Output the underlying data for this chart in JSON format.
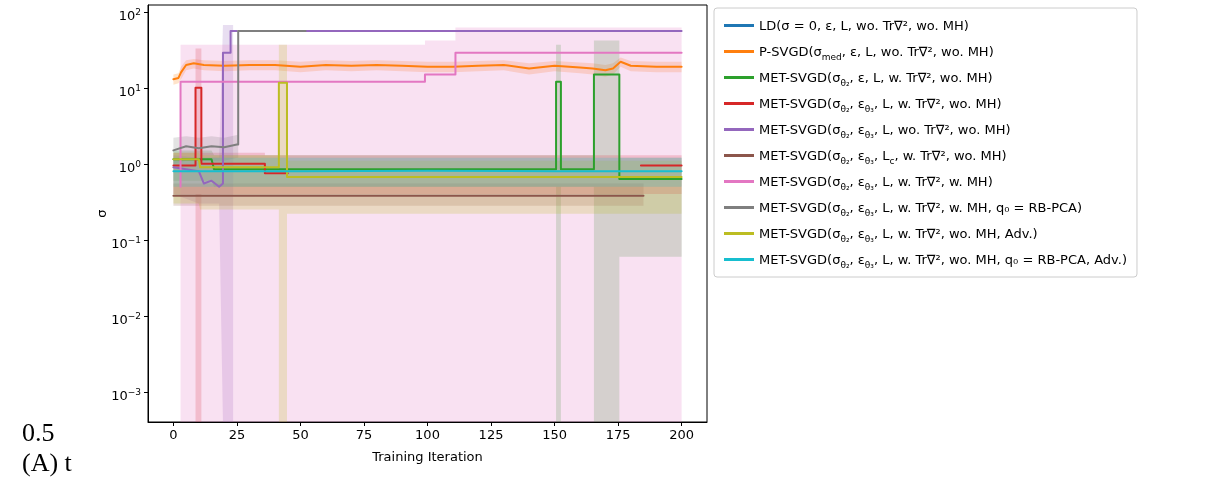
{
  "chart_data": {
    "type": "line",
    "xlabel": "Training Iteration",
    "ylabel": "σ",
    "xlim": [
      -10,
      210
    ],
    "xticks": [
      0,
      25,
      50,
      75,
      100,
      125,
      150,
      175,
      200
    ],
    "ylim": [
      0.0004,
      123
    ],
    "yticks": [
      {
        "value": 0.001,
        "label": "10$^{−3}$"
      },
      {
        "value": 0.01,
        "label": "10$^{−2}$"
      },
      {
        "value": 0.1,
        "label": "10$^{−1}$"
      },
      {
        "value": 1,
        "label": "10$^{0}$"
      },
      {
        "value": 10,
        "label": "10$^{1}$"
      },
      {
        "value": 100,
        "label": "10$^{2}$"
      }
    ],
    "log": "y",
    "legend": "right",
    "annotations": [
      "0.5",
      "(A) t"
    ],
    "series": [
      {
        "name": "LD(σ = 0, ε, L, wo. Tr∇², wo. MH)",
        "color": "#1f77b4"
      },
      {
        "name": "P-SVGD(σ$_{med}$, ε, L, wo. Tr∇², wo. MH)",
        "color": "#ff7f0e",
        "x": [
          0,
          2,
          3,
          5,
          8,
          12,
          20,
          30,
          40,
          50,
          60,
          70,
          80,
          90,
          100,
          110,
          120,
          130,
          140,
          150,
          160,
          165,
          170,
          173,
          176,
          180,
          190,
          200
        ],
        "values": [
          13,
          13.5,
          16,
          20,
          21,
          20,
          19.5,
          20,
          20,
          19,
          20,
          19.5,
          20,
          19.5,
          19,
          19,
          19.5,
          20,
          18,
          19.5,
          18.5,
          18,
          17,
          18,
          22,
          19.5,
          19,
          19
        ],
        "lower": [
          11,
          11.5,
          13,
          17,
          18,
          17,
          16.5,
          17,
          17,
          16,
          17,
          16.5,
          17,
          16.5,
          16,
          16,
          16.5,
          17,
          15,
          16.5,
          15.5,
          15,
          14,
          15,
          19,
          16.5,
          16,
          16
        ],
        "upper": [
          15,
          15.5,
          19,
          23,
          24,
          23,
          22.5,
          23,
          23,
          22,
          23,
          22.5,
          23,
          22.5,
          22,
          22,
          22.5,
          23,
          21,
          22.5,
          21.5,
          21,
          20,
          21,
          25,
          22.5,
          22,
          22
        ]
      },
      {
        "name": "MET-SVGD(σ$_{θ₂}$, ε, L, w. Tr∇², wo. MH)",
        "color": "#2ca02c",
        "x": [
          0,
          15,
          16,
          150.6,
          150.6,
          152.5,
          152.5,
          165.5,
          165.5,
          175.5,
          175.5,
          200
        ],
        "values": [
          1.15,
          1.15,
          0.85,
          0.85,
          12,
          12,
          0.85,
          0.85,
          15,
          15,
          0.63,
          0.63
        ],
        "lower": [
          0.6,
          0.6,
          0.5,
          0.5,
          0.0004,
          0.0004,
          0.5,
          0.5,
          0.0004,
          0.0004,
          0.06,
          0.06
        ],
        "upper": [
          1.5,
          1.5,
          1.3,
          1.3,
          37,
          37,
          1.3,
          1.3,
          42,
          42,
          1.2,
          1.2
        ]
      },
      {
        "name": "MET-SVGD(σ$_{θ₂}$, ε$_{θ₃}$, L, w. Tr∇², wo. MH)",
        "color": "#d62728",
        "x": [
          0,
          8.7,
          8.7,
          11,
          11,
          36,
          36,
          45,
          46,
          183,
          184,
          200
        ],
        "values": [
          0.95,
          0.95,
          10,
          10,
          1.0,
          1.0,
          0.75,
          0.75,
          null,
          null,
          0.95,
          0.95
        ],
        "lower": [
          0.4,
          0.4,
          0.0004,
          0.0004,
          0.4,
          0.4,
          0.4,
          0.4,
          0.4,
          0.4,
          0.4,
          0.4
        ],
        "upper": [
          1.4,
          1.4,
          33,
          33,
          1.4,
          1.4,
          1.3,
          1.3,
          1.3,
          1.3,
          1.3,
          1.3
        ]
      },
      {
        "name": "MET-SVGD(σ$_{θ₂}$, ε$_{θ₃}$, L, wo. Tr∇², wo. MH)",
        "color": "#9467bd",
        "x": [
          0,
          10,
          12,
          15,
          18,
          19.5,
          19.5,
          22.5,
          22.5,
          23.5,
          25,
          26,
          51,
          52,
          200
        ],
        "values": [
          0.9,
          0.8,
          0.55,
          0.6,
          0.5,
          0.55,
          29,
          29,
          56,
          56,
          56,
          null,
          null,
          56,
          56
        ],
        "lower": [
          0.4,
          0.3,
          0.3,
          0.3,
          0.3,
          0.0004,
          0.0004,
          0.0004,
          0.0004,
          0.0004,
          null,
          null,
          null,
          null,
          null
        ],
        "upper": [
          1.3,
          1.2,
          1.2,
          1.2,
          1.2,
          67,
          67,
          67,
          67,
          67,
          null,
          null,
          null,
          null,
          null
        ]
      },
      {
        "name": "MET-SVGD(σ$_{θ₂}$, ε$_{θ₃}$, L$_{c}$, w. Tr∇², wo. MH)",
        "color": "#8c564b",
        "x": [
          0,
          100,
          185
        ],
        "values": [
          0.38,
          0.38,
          0.38
        ],
        "lower": [
          0.28,
          0.28,
          0.28
        ],
        "upper": [
          0.55,
          0.55,
          0.55
        ]
      },
      {
        "name": "MET-SVGD(σ$_{θ₂}$, ε$_{θ₃}$, L, w. Tr∇², w. MH)",
        "color": "#e377c2",
        "x": [
          2.8,
          2.8,
          99,
          99,
          111,
          111,
          200
        ],
        "values": [
          0.5,
          12,
          12,
          15,
          15,
          29,
          29
        ],
        "lower": [
          0.0004,
          0.0004,
          0.0004,
          0.0004,
          0.0004,
          0.0004,
          0.0004
        ],
        "upper": [
          37,
          37,
          37,
          42,
          42,
          62,
          62
        ]
      },
      {
        "name": "MET-SVGD(σ$_{θ₂}$, ε$_{θ₃}$, L, w. Tr∇², w. MH, q₀ = RB-PCA)",
        "color": "#7f7f7f",
        "x": [
          0,
          5,
          10,
          15,
          20,
          25,
          25.5,
          25.5,
          52
        ],
        "values": [
          1.5,
          1.7,
          1.6,
          1.7,
          1.65,
          1.8,
          1.8,
          56,
          56
        ],
        "lower": [
          1.0,
          1.1,
          1.1,
          1.1,
          1.1,
          1.2,
          1.2,
          null,
          null
        ],
        "upper": [
          2.2,
          2.3,
          2.2,
          2.3,
          2.2,
          2.4,
          2.4,
          null,
          null
        ]
      },
      {
        "name": "MET-SVGD(σ$_{θ₂}$, ε$_{θ₃}$, L, w. Tr∇², wo. MH, Adv.)",
        "color": "#bcbd22",
        "x": [
          0,
          10,
          10.5,
          41.5,
          41.5,
          44.7,
          44.7,
          200
        ],
        "values": [
          1.15,
          1.15,
          0.9,
          0.9,
          11.7,
          11.7,
          0.67,
          0.67
        ],
        "lower": [
          0.3,
          0.3,
          0.25,
          0.25,
          0.0004,
          0.0004,
          0.22,
          0.22
        ],
        "upper": [
          1.4,
          1.4,
          1.3,
          1.3,
          37,
          37,
          1.1,
          1.1
        ]
      },
      {
        "name": "MET-SVGD(σ$_{θ₂}$, ε$_{θ₃}$, L, w. Tr∇², wo. MH, q₀ = RB-PCA, Adv.)",
        "color": "#17becf",
        "x": [
          0,
          50,
          100,
          150,
          200
        ],
        "values": [
          0.8,
          0.8,
          0.81,
          0.8,
          0.8
        ],
        "lower": [
          0.5,
          0.5,
          0.5,
          0.5,
          0.5
        ],
        "upper": [
          1.2,
          1.2,
          1.2,
          1.2,
          1.2
        ]
      }
    ]
  }
}
